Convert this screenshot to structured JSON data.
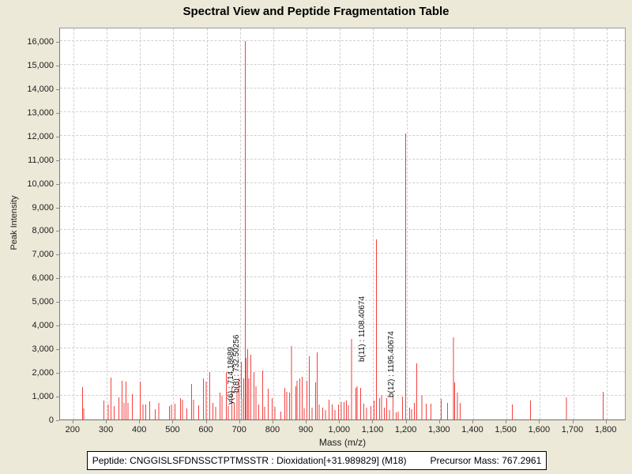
{
  "title": "Spectral View and Peptide Fragmentation Table",
  "footer": {
    "peptide_text": "Peptide: CNGGISLSFDNSSCTPTMSSTR : Dioxidation[+31.989829] (M18)",
    "precursor_text": "Precursor Mass: 767.2961"
  },
  "chart_data": {
    "type": "bar",
    "title": "Spectral View and Peptide Fragmentation Table",
    "xlabel": "Mass (m/z)",
    "ylabel": "Peak Intensity",
    "xlim": [
      160,
      1860
    ],
    "ylim": [
      0,
      16600
    ],
    "x_ticks": [
      200,
      300,
      400,
      500,
      600,
      700,
      800,
      900,
      1000,
      1100,
      1200,
      1300,
      1400,
      1500,
      1600,
      1700,
      1800
    ],
    "y_ticks": [
      0,
      1000,
      2000,
      3000,
      4000,
      5000,
      6000,
      7000,
      8000,
      9000,
      10000,
      11000,
      12000,
      13000,
      14000,
      15000,
      16000
    ],
    "grid": true,
    "legend": "none",
    "colors": {
      "peak": "#f4403f",
      "peak_light": "#f59f9c",
      "grid": "#cfcfcf",
      "background": "#ece9d8",
      "plot_background": "#ffffff"
    },
    "peaks": [
      [
        227,
        1370,
        0
      ],
      [
        232,
        470,
        1
      ],
      [
        290,
        800,
        0
      ],
      [
        305,
        620,
        1
      ],
      [
        312,
        1760,
        0
      ],
      [
        322,
        560,
        0
      ],
      [
        336,
        950,
        0
      ],
      [
        345,
        1630,
        0
      ],
      [
        352,
        700,
        1
      ],
      [
        357,
        1600,
        0
      ],
      [
        365,
        690,
        1
      ],
      [
        376,
        1060,
        0
      ],
      [
        400,
        1620,
        0
      ],
      [
        408,
        640,
        1
      ],
      [
        415,
        620,
        0
      ],
      [
        429,
        780,
        0
      ],
      [
        445,
        420,
        0
      ],
      [
        457,
        700,
        1
      ],
      [
        488,
        560,
        0
      ],
      [
        495,
        620,
        1
      ],
      [
        503,
        680,
        0
      ],
      [
        520,
        900,
        0
      ],
      [
        528,
        830,
        1
      ],
      [
        540,
        480,
        0
      ],
      [
        553,
        1500,
        0
      ],
      [
        560,
        820,
        1
      ],
      [
        574,
        600,
        0
      ],
      [
        590,
        1740,
        0
      ],
      [
        598,
        1620,
        1
      ],
      [
        607,
        2020,
        0
      ],
      [
        618,
        700,
        0
      ],
      [
        628,
        520,
        1
      ],
      [
        638,
        1120,
        0
      ],
      [
        645,
        1000,
        1
      ],
      [
        657,
        2010,
        0
      ],
      [
        664,
        570,
        1
      ],
      [
        674,
        1400,
        0
      ],
      [
        681,
        640,
        0
      ],
      [
        690,
        1180,
        1
      ],
      [
        697,
        1730,
        0
      ],
      [
        703,
        2450,
        0
      ],
      [
        706,
        900,
        1
      ],
      [
        710,
        1730,
        0
      ],
      [
        714.19,
        16000,
        0
      ],
      [
        717,
        2600,
        0
      ],
      [
        723,
        2980,
        0
      ],
      [
        727,
        1730,
        1
      ],
      [
        732.5,
        2750,
        0
      ],
      [
        741,
        2010,
        0
      ],
      [
        748,
        1400,
        1
      ],
      [
        755,
        640,
        0
      ],
      [
        767,
        2060,
        0
      ],
      [
        775,
        520,
        1
      ],
      [
        784,
        1300,
        0
      ],
      [
        795,
        905,
        0
      ],
      [
        806,
        520,
        1
      ],
      [
        821,
        350,
        0
      ],
      [
        834,
        1350,
        0
      ],
      [
        840,
        1180,
        1
      ],
      [
        848,
        1130,
        0
      ],
      [
        854,
        3100,
        1
      ],
      [
        866,
        1400,
        0
      ],
      [
        871,
        1630,
        1
      ],
      [
        879,
        1730,
        0
      ],
      [
        886,
        1790,
        0
      ],
      [
        893,
        460,
        1
      ],
      [
        900,
        1630,
        0
      ],
      [
        908,
        2660,
        0
      ],
      [
        917,
        500,
        1
      ],
      [
        925,
        1580,
        0
      ],
      [
        931,
        2830,
        0
      ],
      [
        938,
        640,
        1
      ],
      [
        948,
        510,
        0
      ],
      [
        957,
        400,
        1
      ],
      [
        965,
        850,
        0
      ],
      [
        975,
        640,
        0
      ],
      [
        985,
        400,
        1
      ],
      [
        995,
        640,
        0
      ],
      [
        1005,
        720,
        1
      ],
      [
        1012,
        720,
        0
      ],
      [
        1018,
        790,
        0
      ],
      [
        1026,
        600,
        1
      ],
      [
        1036,
        3400,
        1
      ],
      [
        1046,
        1350,
        0
      ],
      [
        1052,
        1400,
        1
      ],
      [
        1060,
        1350,
        0
      ],
      [
        1070,
        680,
        0
      ],
      [
        1080,
        510,
        1
      ],
      [
        1092,
        570,
        0
      ],
      [
        1102,
        790,
        0
      ],
      [
        1108.41,
        7600,
        0
      ],
      [
        1117,
        905,
        0
      ],
      [
        1124,
        1020,
        1
      ],
      [
        1132,
        510,
        0
      ],
      [
        1140,
        905,
        0
      ],
      [
        1149,
        400,
        1
      ],
      [
        1158,
        1020,
        0
      ],
      [
        1167,
        290,
        0
      ],
      [
        1175,
        350,
        1
      ],
      [
        1186,
        960,
        0
      ],
      [
        1195.41,
        12100,
        0
      ],
      [
        1207,
        510,
        0
      ],
      [
        1215,
        420,
        1
      ],
      [
        1222,
        700,
        0
      ],
      [
        1230,
        2380,
        0
      ],
      [
        1247,
        1050,
        1
      ],
      [
        1258,
        680,
        0
      ],
      [
        1272,
        680,
        0
      ],
      [
        1302,
        870,
        0
      ],
      [
        1321,
        710,
        0
      ],
      [
        1341,
        3460,
        1
      ],
      [
        1344,
        1560,
        0
      ],
      [
        1352,
        1150,
        1
      ],
      [
        1359,
        700,
        0
      ],
      [
        1516,
        620,
        0
      ],
      [
        1570,
        800,
        0
      ],
      [
        1680,
        930,
        1
      ],
      [
        1788,
        1180,
        0
      ]
    ],
    "annotations": [
      {
        "text": "y(6) : 714.18689",
        "mz": 714.19,
        "anchor_intensity": 640
      },
      {
        "text": "b(8) : 732.50256",
        "mz": 732.5,
        "anchor_intensity": 1150
      },
      {
        "text": "b(11) : 1108.40674",
        "mz": 1108.41,
        "anchor_intensity": 2450
      },
      {
        "text": "b(12) : 1195.40674",
        "mz": 1195.41,
        "anchor_intensity": 950
      }
    ]
  }
}
